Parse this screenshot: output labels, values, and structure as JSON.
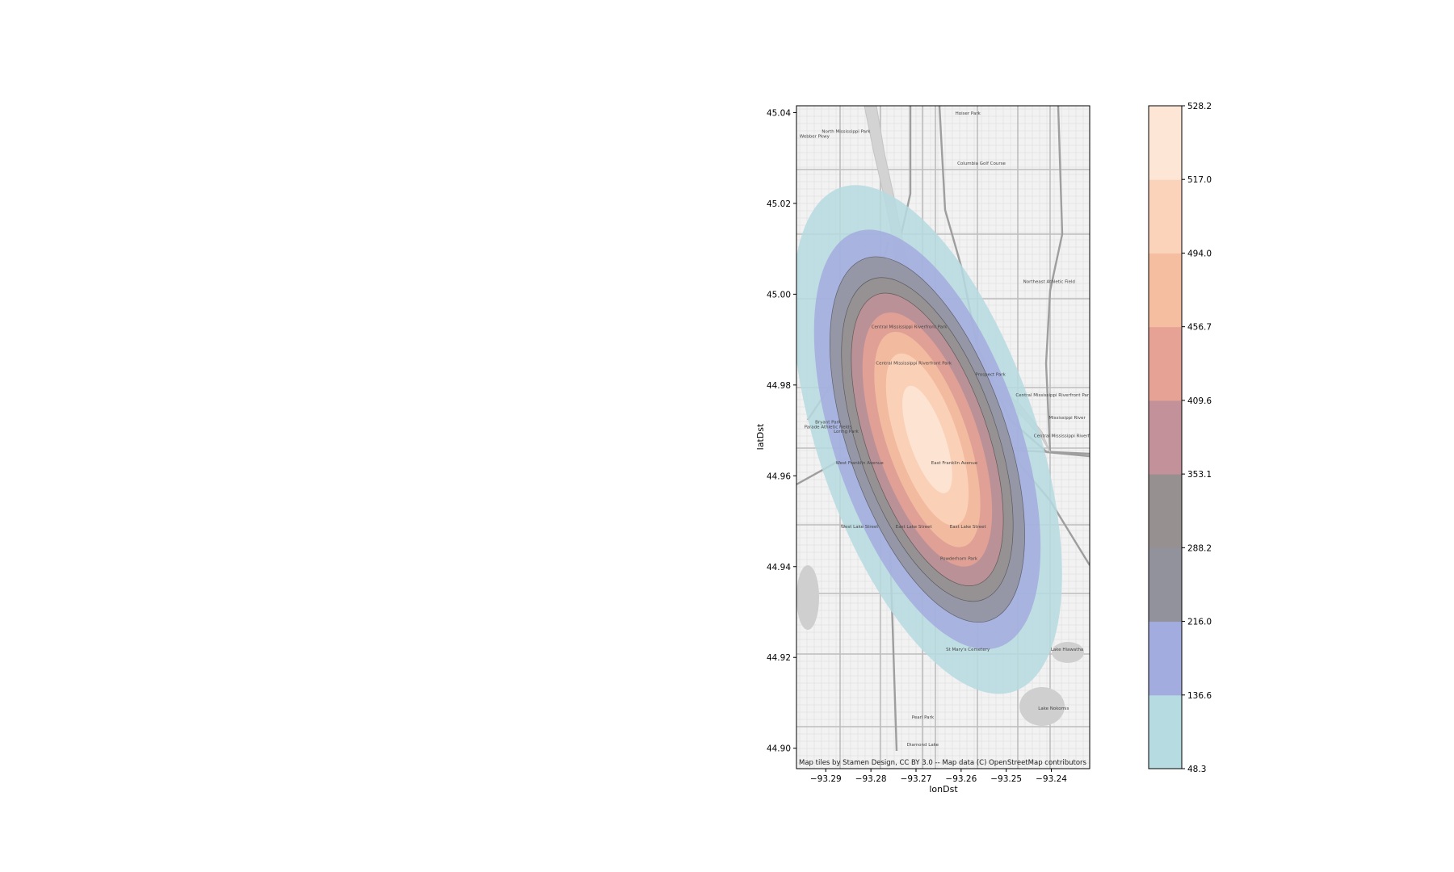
{
  "chart_data": {
    "type": "heatmap",
    "subtype": "filled-contour density over map tiles",
    "xlabel": "lonDst",
    "ylabel": "latDst",
    "xlim": [
      -93.2965,
      -93.2315
    ],
    "ylim": [
      44.8955,
      45.0415
    ],
    "xticks": [
      -93.29,
      -93.28,
      -93.27,
      -93.26,
      -93.25,
      -93.24
    ],
    "xtick_labels": [
      "−93.29",
      "−93.28",
      "−93.27",
      "−93.26",
      "−93.25",
      "−93.24"
    ],
    "yticks": [
      44.9,
      44.92,
      44.94,
      44.96,
      44.98,
      45.0,
      45.02,
      45.04
    ],
    "ytick_labels": [
      "44.90",
      "44.92",
      "44.94",
      "44.96",
      "44.98",
      "45.00",
      "45.02",
      "45.04"
    ],
    "grid": false,
    "attribution": "Map tiles by Stamen Design, CC BY 3.0 -- Map data (C) OpenStreetMap contributors",
    "colorbar": {
      "levels": [
        48.3,
        136.6,
        216.0,
        288.2,
        353.1,
        409.6,
        456.7,
        494.0,
        517.0,
        528.2
      ],
      "labels": [
        "48.3",
        "136.6",
        "216.0",
        "288.2",
        "353.1",
        "409.6",
        "456.7",
        "494.0",
        "517.0",
        "528.2"
      ],
      "colors": [
        "#b6dbe1",
        "#a3acde",
        "#92929d",
        "#979090",
        "#c29199",
        "#e6a294",
        "#f5bea1",
        "#fbd3bb",
        "#fde6d6"
      ]
    },
    "density_center": {
      "lon": -93.2675,
      "lat": 44.968
    },
    "contour_levels": [
      {
        "level": 48.3,
        "color": "#b6dbe1"
      },
      {
        "level": 136.6,
        "color": "#a3acde"
      },
      {
        "level": 216.0,
        "color": "#92929d"
      },
      {
        "level": 288.2,
        "color": "#979090"
      },
      {
        "level": 353.1,
        "color": "#c29199"
      },
      {
        "level": 409.6,
        "color": "#e6a294"
      },
      {
        "level": 456.7,
        "color": "#f5bea1"
      },
      {
        "level": 494.0,
        "color": "#fbd3bb"
      },
      {
        "level": 517.0,
        "color": "#fde6d6"
      }
    ]
  },
  "map_labels": [
    {
      "text": "Hoiser Park",
      "lon": -93.2585,
      "lat": 45.0395
    },
    {
      "text": "North Mississippi Park",
      "lon": -93.2855,
      "lat": 45.0355
    },
    {
      "text": "Webber Pkwy",
      "lon": -93.2925,
      "lat": 45.0345
    },
    {
      "text": "Columbia Golf Course",
      "lon": -93.2555,
      "lat": 45.0285
    },
    {
      "text": "Central Mississippi Riverfront Park",
      "lon": -93.2715,
      "lat": 44.9925
    },
    {
      "text": "Central Mississippi Riverfront Park",
      "lon": -93.2705,
      "lat": 44.9845
    },
    {
      "text": "Prospect Park",
      "lon": -93.2535,
      "lat": 44.982
    },
    {
      "text": "Bryant Park",
      "lon": -93.2895,
      "lat": 44.9715
    },
    {
      "text": "Parade Athletic Fields",
      "lon": -93.2895,
      "lat": 44.9705
    },
    {
      "text": "Loring Park",
      "lon": -93.2855,
      "lat": 44.9695
    },
    {
      "text": "West Franklin Avenue",
      "lon": -93.2825,
      "lat": 44.9625
    },
    {
      "text": "East Franklin Avenue",
      "lon": -93.2615,
      "lat": 44.9625
    },
    {
      "text": "West Lake Street",
      "lon": -93.2825,
      "lat": 44.9485
    },
    {
      "text": "East Lake Street",
      "lon": -93.2705,
      "lat": 44.9485
    },
    {
      "text": "East Lake Street",
      "lon": -93.2585,
      "lat": 44.9485
    },
    {
      "text": "Powderhorn Park",
      "lon": -93.2605,
      "lat": 44.9415
    },
    {
      "text": "St Mary's Cemetery",
      "lon": -93.2585,
      "lat": 44.9215
    },
    {
      "text": "Lake Hiawatha",
      "lon": -93.2365,
      "lat": 44.9215
    },
    {
      "text": "Lake Nokomis",
      "lon": -93.2395,
      "lat": 44.9085
    },
    {
      "text": "Pearl Park",
      "lon": -93.2685,
      "lat": 44.9065
    },
    {
      "text": "Diamond Lake",
      "lon": -93.2685,
      "lat": 44.9005
    },
    {
      "text": "Mississippi River",
      "lon": -93.2365,
      "lat": 44.9725
    },
    {
      "text": "Central Mississippi Riverfront Park",
      "lon": -93.2395,
      "lat": 44.9775
    },
    {
      "text": "Central Mississippi Riverfront Park",
      "lon": -93.2355,
      "lat": 44.9685
    },
    {
      "text": "Northeast Athletic Field",
      "lon": -93.2405,
      "lat": 45.0025
    }
  ]
}
